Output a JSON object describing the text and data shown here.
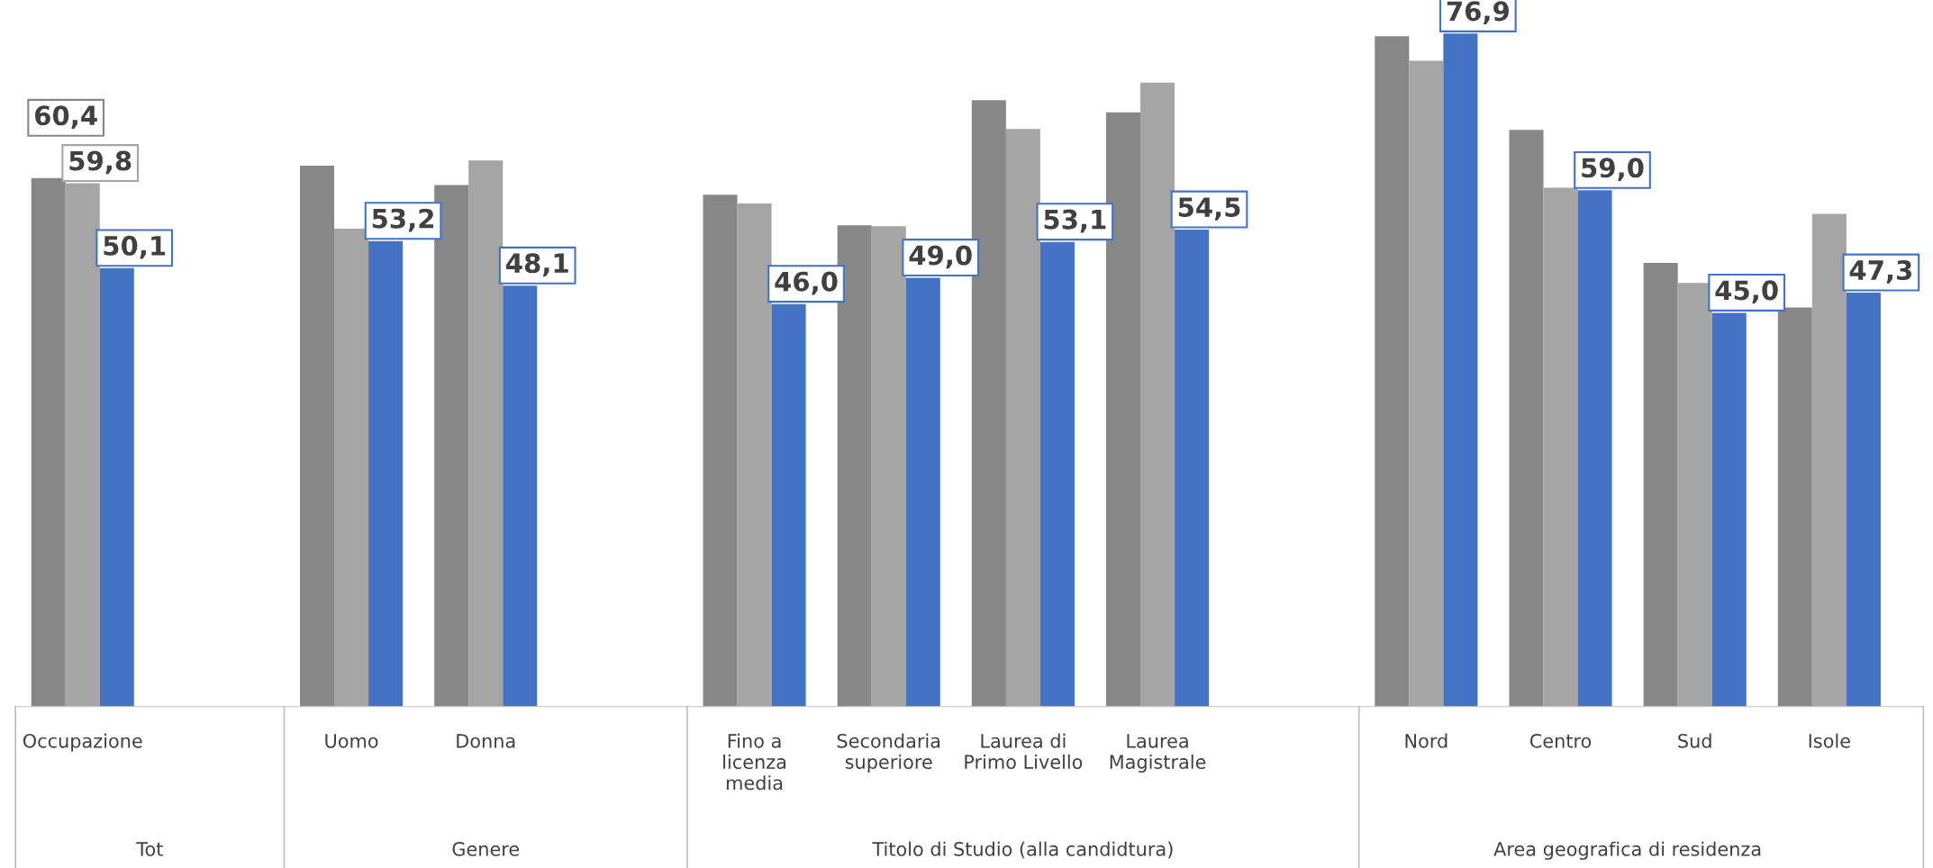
{
  "chart_data": {
    "type": "bar",
    "categories": [
      "Occupazione",
      null,
      "Uomo",
      "Donna",
      null,
      "Fino a\nlicenza\nmedia",
      "Secondaria\nsuperiore",
      "Laurea di\nPrimo Livello",
      "Laurea\nMagistrale",
      null,
      "Nord",
      "Centro",
      "Sud",
      "Isole"
    ],
    "annotations": [
      "Tot",
      "Genere",
      "Titolo di Studio (alla candidtura)",
      "Area geografica di residenza"
    ],
    "legend": false,
    "series": [
      {
        "color": "#878787",
        "values": [
          60.4,
          null,
          61.8,
          59.6,
          null,
          58.5,
          55.0,
          69.3,
          67.9,
          null,
          76.6,
          65.9,
          50.7,
          45.6
        ],
        "value_labels": [
          "60,4",
          null,
          null,
          null,
          null,
          null,
          null,
          null,
          null,
          null,
          null,
          null,
          null,
          null
        ]
      },
      {
        "color": "#a5a5a5",
        "values": [
          59.8,
          null,
          54.6,
          62.4,
          null,
          57.5,
          54.9,
          66.0,
          71.3,
          null,
          73.8,
          59.3,
          48.4,
          56.3
        ],
        "value_labels": [
          "59,8",
          null,
          null,
          null,
          null,
          null,
          null,
          null,
          null,
          null,
          null,
          null,
          null,
          null
        ]
      },
      {
        "color": "#4472c4",
        "values": [
          50.1,
          null,
          53.2,
          48.1,
          null,
          46.0,
          49.0,
          53.1,
          54.5,
          null,
          76.9,
          59.0,
          45.0,
          47.3
        ],
        "value_labels": [
          "50,1",
          null,
          "53,2",
          "48,1",
          null,
          "46,0",
          "49,0",
          "53,1",
          "54,5",
          null,
          "76,9",
          "59,0",
          "45,0",
          "47,3"
        ]
      }
    ]
  }
}
